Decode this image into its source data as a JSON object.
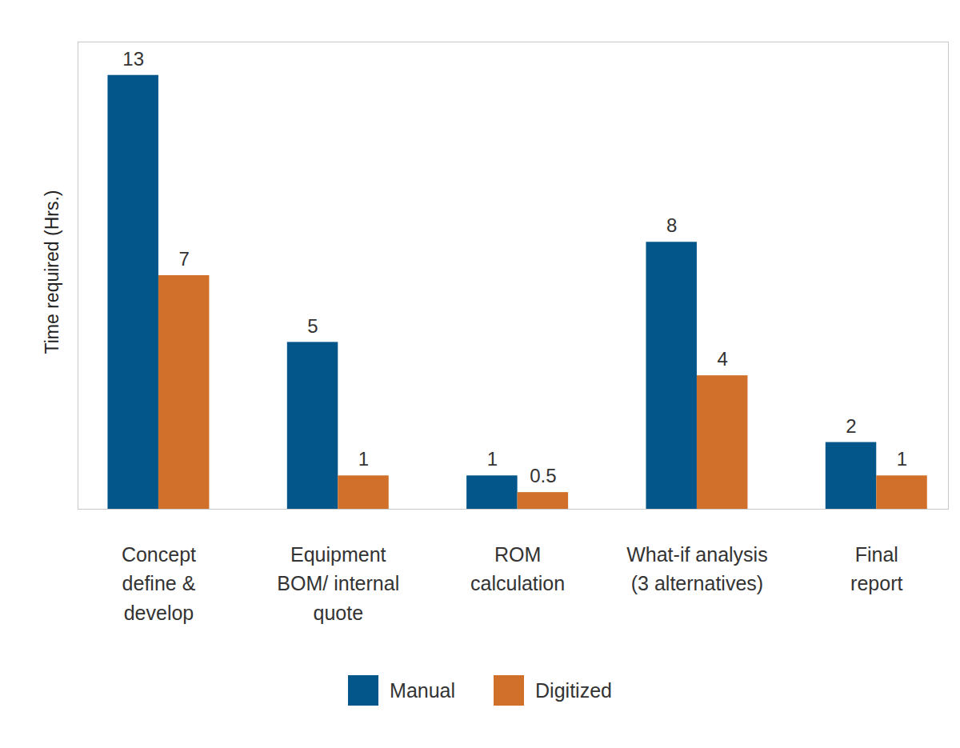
{
  "chart_data": {
    "type": "bar",
    "ylabel": "Time required (Hrs.)",
    "categories": [
      "Concept\ndefine &\ndevelop",
      "Equipment\nBOM/ internal\nquote",
      "ROM\ncalculation",
      "What-if analysis\n(3 alternatives)",
      "Final\nreport"
    ],
    "series": [
      {
        "name": "Manual",
        "color": "#02568a",
        "values": [
          13,
          5,
          1,
          8,
          2
        ]
      },
      {
        "name": "Digitized",
        "color": "#d0702a",
        "values": [
          7,
          1,
          0.5,
          4,
          1
        ]
      }
    ],
    "ylim": [
      0,
      14
    ],
    "yticks": [],
    "grid": false,
    "legend": "bottom",
    "data_labels": true,
    "tick_labels": "x"
  }
}
